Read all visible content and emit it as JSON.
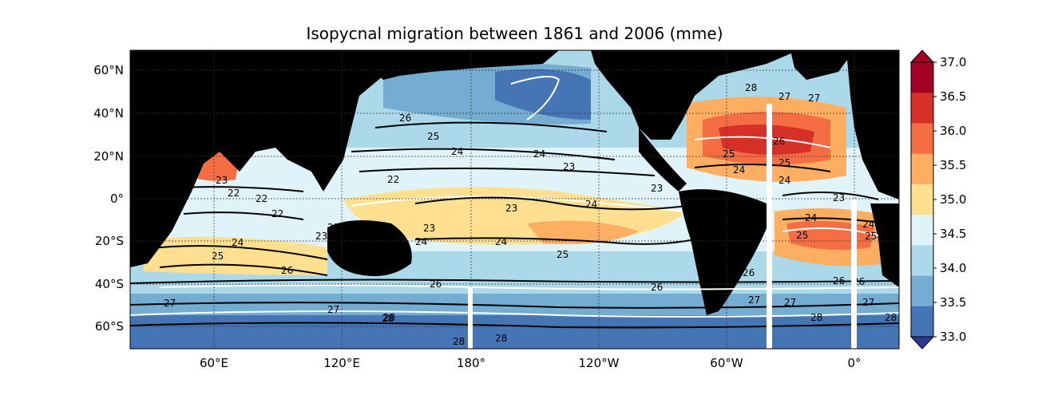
{
  "title": "Isopycnal migration between 1861 and 2006 (mme)",
  "map": {
    "lon_ticks": [
      "60°E",
      "120°E",
      "180°",
      "120°W",
      "60°W",
      "0°"
    ],
    "lat_ticks": [
      "60°N",
      "40°N",
      "20°N",
      "0°",
      "20°S",
      "40°S",
      "60°S"
    ],
    "contour_labels": [
      "22",
      "23",
      "24",
      "25",
      "26",
      "27",
      "28"
    ],
    "land_color": "#000000"
  },
  "colorbar": {
    "ticks": [
      "37.0",
      "36.5",
      "36.0",
      "35.5",
      "35.0",
      "34.5",
      "34.0",
      "33.5",
      "33.0"
    ],
    "colors": [
      "#a50026",
      "#d73027",
      "#f46d43",
      "#fdae61",
      "#fee090",
      "#e0f3f8",
      "#abd9e9",
      "#74add1",
      "#4575b4"
    ],
    "extend": "both"
  }
}
